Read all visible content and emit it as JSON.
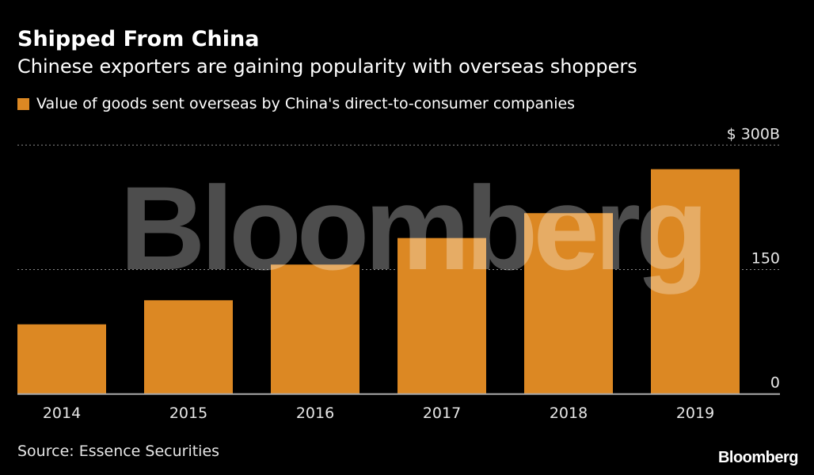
{
  "title": "Shipped From China",
  "subtitle": "Chinese exporters are gaining popularity with overseas shoppers",
  "source": "Source: Essence Securities",
  "logo": "Bloomberg",
  "watermark": "Bloomberg",
  "chart_data": {
    "type": "bar",
    "title": "Shipped From China",
    "categories": [
      "2014",
      "2015",
      "2016",
      "2017",
      "2018",
      "2019"
    ],
    "series": [
      {
        "name": "Value of goods sent overseas by China's direct-to-consumer companies",
        "values": [
          84,
          113,
          156,
          188,
          218,
          271
        ],
        "color": "#dc8823"
      }
    ],
    "ylim": [
      0,
      300
    ],
    "yticks": [
      0,
      150,
      300
    ],
    "ytick_labels": [
      "0",
      "150",
      "$ 300B"
    ],
    "xlabel": "",
    "ylabel": "",
    "grid": true,
    "legend_placement": "top-left"
  }
}
